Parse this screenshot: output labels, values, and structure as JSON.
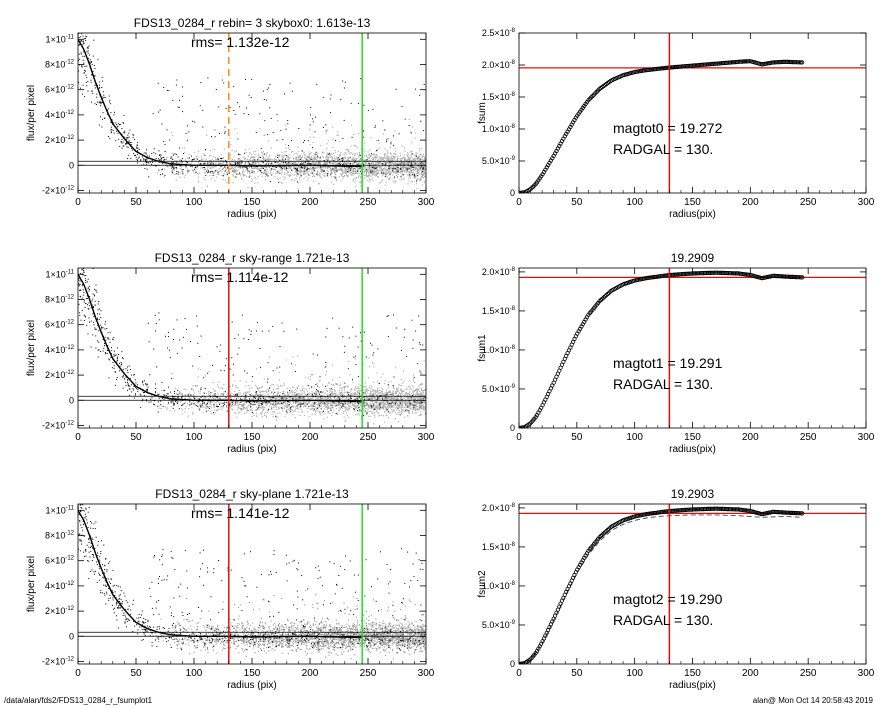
{
  "chart_data": [
    {
      "type": "scatter",
      "title": "FDS13_0284_r rebin= 3    skybox0:  1.613e-13",
      "xlabel": "radius (pix)",
      "ylabel": "flux/per pixel",
      "xlim": [
        0,
        300
      ],
      "ylim": [
        -2.2e-12,
        1.05e-11
      ],
      "xticks": [
        0,
        50,
        100,
        150,
        200,
        250,
        300
      ],
      "xtick_labels": [
        "0",
        "50",
        "100",
        "150",
        "200",
        "250",
        "300"
      ],
      "yticks": [
        {
          "v": 1e-11,
          "m": "1×10",
          "e": "-11"
        },
        {
          "v": 8e-12,
          "m": "8×10",
          "e": "-12"
        },
        {
          "v": 6e-12,
          "m": "6×10",
          "e": "-12"
        },
        {
          "v": 4e-12,
          "m": "4×10",
          "e": "-12"
        },
        {
          "v": 2e-12,
          "m": "2×10",
          "e": "-12"
        },
        {
          "v": 0,
          "m": "0",
          "e": ""
        },
        {
          "v": -2e-12,
          "m": "-2×10",
          "e": "-12"
        }
      ],
      "annotations": [
        "rms= 1.132e-12"
      ],
      "vlines": [
        {
          "x": 130,
          "color": "#ff8c1a",
          "style": "dashed"
        },
        {
          "x": 245,
          "color": "#22dd22",
          "style": "solid"
        }
      ],
      "hlines": [
        {
          "y": 0,
          "color": "#000000"
        },
        {
          "y": 3.2e-13,
          "color": "#000000"
        }
      ],
      "profile": {
        "x": [
          0,
          5,
          10,
          15,
          20,
          25,
          30,
          40,
          50,
          60,
          70,
          80,
          100,
          130,
          150,
          200,
          245
        ],
        "y": [
          1e-11,
          9.2e-12,
          8e-12,
          6.6e-12,
          5.4e-12,
          4.3e-12,
          3.3e-12,
          2.1e-12,
          1.1e-12,
          6e-13,
          3e-13,
          1.2e-13,
          0,
          0,
          -5e-14,
          0,
          -1e-13
        ]
      },
      "scatter_colors": {
        "points": "#000000",
        "dense": "#a8a8a8"
      }
    },
    {
      "type": "line",
      "title": "",
      "xlabel": "radius(pix)",
      "ylabel": "fsum",
      "xlim": [
        0,
        300
      ],
      "ylim": [
        0,
        2.5e-08
      ],
      "xticks": [
        0,
        50,
        100,
        150,
        200,
        250,
        300
      ],
      "xtick_labels": [
        "0",
        "50",
        "100",
        "150",
        "200",
        "250",
        "300"
      ],
      "yticks": [
        {
          "v": 2.5e-08,
          "m": "2.5×10",
          "e": "-8"
        },
        {
          "v": 2e-08,
          "m": "2.0×10",
          "e": "-8"
        },
        {
          "v": 1.5e-08,
          "m": "1.5×10",
          "e": "-8"
        },
        {
          "v": 1e-08,
          "m": "1.0×10",
          "e": "-8"
        },
        {
          "v": 5e-09,
          "m": "5.0×10",
          "e": "-9"
        },
        {
          "v": 0,
          "m": "0",
          "e": ""
        }
      ],
      "annotations": [
        "magtot0 =  19.272",
        "RADGAL =     130."
      ],
      "vlines": [
        {
          "x": 130,
          "color": "#dd1111",
          "style": "solid"
        }
      ],
      "hlines": [
        {
          "y": 1.955e-08,
          "color": "#dd1111"
        }
      ],
      "curve": {
        "x": [
          0,
          5,
          10,
          15,
          20,
          30,
          40,
          50,
          60,
          70,
          80,
          90,
          100,
          110,
          120,
          130,
          150,
          170,
          190,
          200,
          210,
          220,
          230,
          245
        ],
        "y": [
          0,
          1e-10,
          6e-10,
          1.5e-09,
          2.8e-09,
          5.8e-09,
          9e-09,
          1.2e-08,
          1.45e-08,
          1.63e-08,
          1.76e-08,
          1.84e-08,
          1.89e-08,
          1.92e-08,
          1.94e-08,
          1.96e-08,
          1.99e-08,
          2.02e-08,
          2.05e-08,
          2.06e-08,
          2.01e-08,
          2.04e-08,
          2.05e-08,
          2.04e-08
        ]
      }
    },
    {
      "type": "scatter",
      "title": "FDS13_0284_r sky-range  1.721e-13",
      "xlabel": "radius (pix)",
      "ylabel": "flux/per pixel",
      "xlim": [
        0,
        300
      ],
      "ylim": [
        -2.2e-12,
        1.05e-11
      ],
      "xticks": [
        0,
        50,
        100,
        150,
        200,
        250,
        300
      ],
      "xtick_labels": [
        "0",
        "50",
        "100",
        "150",
        "200",
        "250",
        "300"
      ],
      "yticks": [
        {
          "v": 1e-11,
          "m": "1×10",
          "e": "-11"
        },
        {
          "v": 8e-12,
          "m": "8×10",
          "e": "-12"
        },
        {
          "v": 6e-12,
          "m": "6×10",
          "e": "-12"
        },
        {
          "v": 4e-12,
          "m": "4×10",
          "e": "-12"
        },
        {
          "v": 2e-12,
          "m": "2×10",
          "e": "-12"
        },
        {
          "v": 0,
          "m": "0",
          "e": ""
        },
        {
          "v": -2e-12,
          "m": "-2×10",
          "e": "-12"
        }
      ],
      "annotations": [
        "rms= 1.114e-12"
      ],
      "vlines": [
        {
          "x": 130,
          "color": "#dd1111",
          "style": "solid"
        },
        {
          "x": 245,
          "color": "#22dd22",
          "style": "solid"
        }
      ],
      "hlines": [
        {
          "y": 0,
          "color": "#000000"
        },
        {
          "y": 3.2e-13,
          "color": "#000000"
        }
      ],
      "profile": {
        "x": [
          0,
          5,
          10,
          15,
          20,
          25,
          30,
          40,
          50,
          60,
          70,
          80,
          100,
          130,
          150,
          200,
          245
        ],
        "y": [
          1e-11,
          9.2e-12,
          8e-12,
          6.6e-12,
          5.4e-12,
          4.3e-12,
          3.3e-12,
          2.1e-12,
          1.1e-12,
          6e-13,
          3e-13,
          1.2e-13,
          0,
          0,
          -5e-14,
          0,
          -1e-13
        ]
      },
      "scatter_colors": {
        "points": "#000000",
        "dense": "#a8a8a8"
      }
    },
    {
      "type": "line",
      "title": "19.2909",
      "xlabel": "radius(pix)",
      "ylabel": "fsum1",
      "xlim": [
        0,
        300
      ],
      "ylim": [
        0,
        2.05e-08
      ],
      "xticks": [
        0,
        50,
        100,
        150,
        200,
        250,
        300
      ],
      "xtick_labels": [
        "0",
        "50",
        "100",
        "150",
        "200",
        "250",
        "300"
      ],
      "yticks": [
        {
          "v": 2e-08,
          "m": "2.0×10",
          "e": "-8"
        },
        {
          "v": 1.5e-08,
          "m": "1.5×10",
          "e": "-8"
        },
        {
          "v": 1e-08,
          "m": "1.0×10",
          "e": "-8"
        },
        {
          "v": 5e-09,
          "m": "5.0×10",
          "e": "-9"
        },
        {
          "v": 0,
          "m": "0",
          "e": ""
        }
      ],
      "annotations": [
        "magtot1 =  19.291",
        "RADGAL =     130."
      ],
      "vlines": [
        {
          "x": 130,
          "color": "#dd1111",
          "style": "solid"
        }
      ],
      "hlines": [
        {
          "y": 1.93e-08,
          "color": "#dd1111"
        }
      ],
      "curve": {
        "x": [
          0,
          5,
          10,
          15,
          20,
          30,
          40,
          50,
          60,
          70,
          80,
          90,
          100,
          110,
          120,
          130,
          150,
          170,
          190,
          200,
          210,
          220,
          230,
          245
        ],
        "y": [
          0,
          1e-10,
          6e-10,
          1.5e-09,
          2.8e-09,
          5.8e-09,
          9e-09,
          1.2e-08,
          1.45e-08,
          1.63e-08,
          1.76e-08,
          1.84e-08,
          1.89e-08,
          1.92e-08,
          1.94e-08,
          1.96e-08,
          1.98e-08,
          1.99e-08,
          1.98e-08,
          1.96e-08,
          1.92e-08,
          1.95e-08,
          1.94e-08,
          1.93e-08
        ]
      }
    },
    {
      "type": "scatter",
      "title": "FDS13_0284_r sky-plane  1.721e-13",
      "xlabel": "radius (pix)",
      "ylabel": "flux/per pixel",
      "xlim": [
        0,
        300
      ],
      "ylim": [
        -2.2e-12,
        1.05e-11
      ],
      "xticks": [
        0,
        50,
        100,
        150,
        200,
        250,
        300
      ],
      "xtick_labels": [
        "0",
        "50",
        "100",
        "150",
        "200",
        "250",
        "300"
      ],
      "yticks": [
        {
          "v": 1e-11,
          "m": "1×10",
          "e": "-11"
        },
        {
          "v": 8e-12,
          "m": "8×10",
          "e": "-12"
        },
        {
          "v": 6e-12,
          "m": "6×10",
          "e": "-12"
        },
        {
          "v": 4e-12,
          "m": "4×10",
          "e": "-12"
        },
        {
          "v": 2e-12,
          "m": "2×10",
          "e": "-12"
        },
        {
          "v": 0,
          "m": "0",
          "e": ""
        },
        {
          "v": -2e-12,
          "m": "-2×10",
          "e": "-12"
        }
      ],
      "annotations": [
        "rms= 1.141e-12"
      ],
      "vlines": [
        {
          "x": 130,
          "color": "#dd1111",
          "style": "solid"
        },
        {
          "x": 245,
          "color": "#22dd22",
          "style": "solid"
        }
      ],
      "hlines": [
        {
          "y": 0,
          "color": "#000000"
        },
        {
          "y": 3.2e-13,
          "color": "#000000"
        }
      ],
      "profile": {
        "x": [
          0,
          5,
          10,
          15,
          20,
          25,
          30,
          40,
          50,
          60,
          70,
          80,
          100,
          130,
          150,
          200,
          245
        ],
        "y": [
          1e-11,
          9.2e-12,
          8e-12,
          6.6e-12,
          5.4e-12,
          4.3e-12,
          3.3e-12,
          2.1e-12,
          1.1e-12,
          6e-13,
          3e-13,
          1.2e-13,
          0,
          0,
          -5e-14,
          0,
          -1e-13
        ]
      },
      "scatter_colors": {
        "points": "#000000",
        "dense": "#9a9a9a"
      }
    },
    {
      "type": "line",
      "title": "19.2903",
      "xlabel": "radius(pix)",
      "ylabel": "fsum2",
      "xlim": [
        0,
        300
      ],
      "ylim": [
        0,
        2.05e-08
      ],
      "xticks": [
        0,
        50,
        100,
        150,
        200,
        250,
        300
      ],
      "xtick_labels": [
        "0",
        "50",
        "100",
        "150",
        "200",
        "250",
        "300"
      ],
      "yticks": [
        {
          "v": 2e-08,
          "m": "2.0×10",
          "e": "-8"
        },
        {
          "v": 1.5e-08,
          "m": "1.5×10",
          "e": "-8"
        },
        {
          "v": 1e-08,
          "m": "1.0×10",
          "e": "-8"
        },
        {
          "v": 5e-09,
          "m": "5.0×10",
          "e": "-9"
        },
        {
          "v": 0,
          "m": "0",
          "e": ""
        }
      ],
      "annotations": [
        "magtot2 =  19.290",
        "RADGAL =     130."
      ],
      "vlines": [
        {
          "x": 130,
          "color": "#dd1111",
          "style": "solid"
        }
      ],
      "hlines": [
        {
          "y": 1.93e-08,
          "color": "#dd1111"
        }
      ],
      "curve": {
        "x": [
          0,
          5,
          10,
          15,
          20,
          30,
          40,
          50,
          60,
          70,
          80,
          90,
          100,
          110,
          120,
          130,
          150,
          170,
          190,
          200,
          210,
          220,
          230,
          245
        ],
        "y": [
          0,
          1e-10,
          6e-10,
          1.5e-09,
          2.8e-09,
          5.8e-09,
          9e-09,
          1.2e-08,
          1.45e-08,
          1.63e-08,
          1.76e-08,
          1.84e-08,
          1.89e-08,
          1.92e-08,
          1.94e-08,
          1.96e-08,
          1.98e-08,
          1.99e-08,
          1.98e-08,
          1.96e-08,
          1.92e-08,
          1.95e-08,
          1.94e-08,
          1.93e-08
        ]
      },
      "dashed_curve": {
        "x": [
          0,
          10,
          20,
          30,
          40,
          50,
          60,
          70,
          80,
          90,
          100,
          110,
          120,
          130,
          150,
          170,
          190,
          210,
          230,
          245
        ],
        "y": [
          0,
          5e-10,
          2.6e-09,
          5.6e-09,
          8.7e-09,
          1.16e-08,
          1.4e-08,
          1.58e-08,
          1.71e-08,
          1.79e-08,
          1.84e-08,
          1.87e-08,
          1.89e-08,
          1.9e-08,
          1.91e-08,
          1.91e-08,
          1.9e-08,
          1.88e-08,
          1.89e-08,
          1.88e-08
        ]
      }
    }
  ],
  "footer": {
    "left": "/data/alan/fds2/FDS13_0284_r_fsumplot1",
    "right": "alan@  Mon Oct 14 20:58:43 2019"
  }
}
